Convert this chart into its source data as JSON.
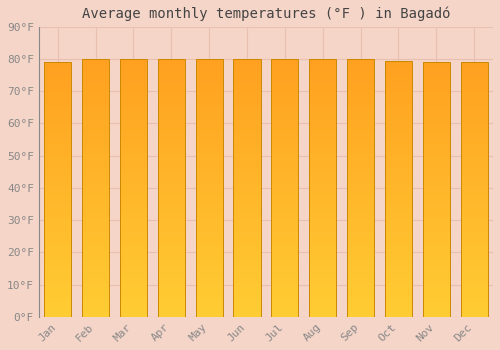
{
  "title": "Average monthly temperatures (°F ) in Bagadó",
  "months": [
    "Jan",
    "Feb",
    "Mar",
    "Apr",
    "May",
    "Jun",
    "Jul",
    "Aug",
    "Sep",
    "Oct",
    "Nov",
    "Dec"
  ],
  "values": [
    79,
    80,
    80,
    80,
    80,
    80,
    80,
    80,
    80,
    79.5,
    79,
    79
  ],
  "ylim": [
    0,
    90
  ],
  "yticks": [
    0,
    10,
    20,
    30,
    40,
    50,
    60,
    70,
    80,
    90
  ],
  "ytick_labels": [
    "0°F",
    "10°F",
    "20°F",
    "30°F",
    "40°F",
    "50°F",
    "60°F",
    "70°F",
    "80°F",
    "90°F"
  ],
  "bar_color_bottom": "#FFCC33",
  "bar_color_top": "#FFA020",
  "bar_edge_color": "#CC8800",
  "background_color": "#F5D5C8",
  "plot_bg_color": "#F5D5C8",
  "grid_color": "#E8C0B0",
  "title_fontsize": 10,
  "tick_fontsize": 8,
  "figsize": [
    5.0,
    3.5
  ],
  "dpi": 100
}
